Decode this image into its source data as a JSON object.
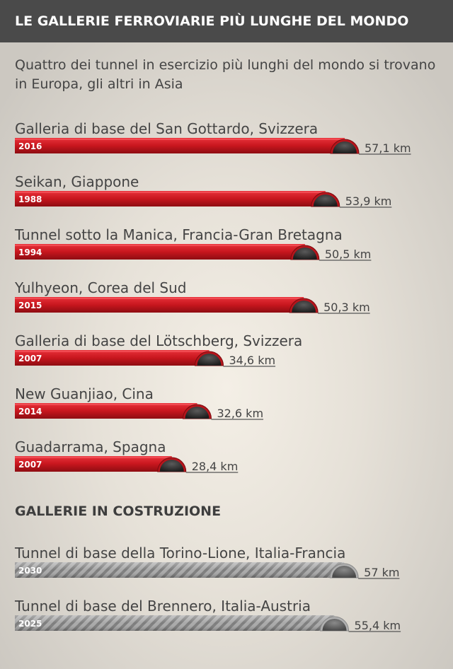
{
  "header": {
    "title": "LE GALLERIE FERROVIARIE PIÙ LUNGHE DEL MONDO"
  },
  "subtitle": "Quattro dei tunnel in esercizio più lunghi del mondo si trovano in Europa, gli altri in Asia",
  "section_construction": "GALLERIE IN COSTRUZIONE",
  "colors": {
    "operating_bar": "#c8161e",
    "construction_bar": "#8a8a8a",
    "header_bg": "#4a4a4a",
    "text": "#444444"
  },
  "chart_data": {
    "type": "bar",
    "orientation": "horizontal",
    "unit": "km",
    "xlim": [
      0,
      57.1
    ],
    "operating": [
      {
        "name": "Galleria di base del San Gottardo, Svizzera",
        "year": "2016",
        "value": 57.1,
        "label": "57,1 km"
      },
      {
        "name": "Seikan, Giappone",
        "year": "1988",
        "value": 53.9,
        "label": "53,9 km"
      },
      {
        "name": "Tunnel sotto la Manica, Francia-Gran Bretagna",
        "year": "1994",
        "value": 50.5,
        "label": "50,5 km"
      },
      {
        "name": "Yulhyeon, Corea del Sud",
        "year": "2015",
        "value": 50.3,
        "label": "50,3 km"
      },
      {
        "name": "Galleria di base del Lötschberg, Svizzera",
        "year": "2007",
        "value": 34.6,
        "label": "34,6 km"
      },
      {
        "name": "New Guanjiao, Cina",
        "year": "2014",
        "value": 32.6,
        "label": "32,6 km"
      },
      {
        "name": "Guadarrama, Spagna",
        "year": "2007",
        "value": 28.4,
        "label": "28,4 km"
      }
    ],
    "under_construction": [
      {
        "name": "Tunnel di base della Torino-Lione, Italia-Francia",
        "year": "2030",
        "value": 57.0,
        "label": "57 km"
      },
      {
        "name": "Tunnel di base del Brennero, Italia-Austria",
        "year": "2025",
        "value": 55.4,
        "label": "55,4 km"
      }
    ]
  }
}
